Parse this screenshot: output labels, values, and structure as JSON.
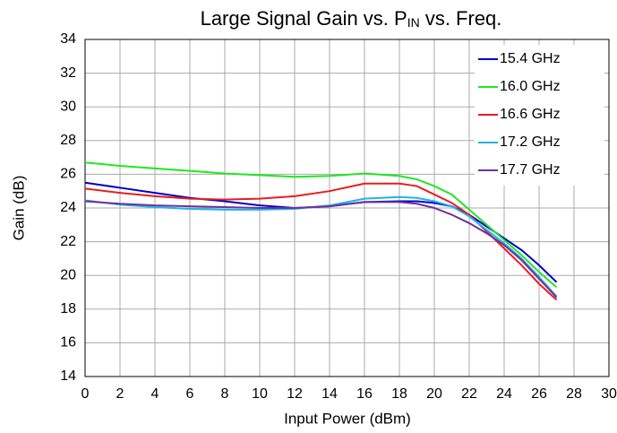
{
  "chart_data": {
    "type": "line",
    "title": [
      "Large Signal Gain vs. P",
      "IN",
      " vs. Freq."
    ],
    "x_label": "Input Power (dBm)",
    "y_label": "Gain (dB)",
    "x": [
      0,
      2,
      4,
      6,
      8,
      10,
      12,
      14,
      16,
      18,
      19,
      20,
      21,
      22,
      23,
      24,
      25,
      26,
      27
    ],
    "series": [
      {
        "name": "15.4 GHz",
        "color": "#0000c8",
        "values": [
          25.5,
          25.2,
          24.9,
          24.6,
          24.4,
          24.15,
          24.0,
          24.1,
          24.35,
          24.4,
          24.4,
          24.3,
          24.1,
          23.6,
          22.9,
          22.2,
          21.5,
          20.6,
          19.6
        ]
      },
      {
        "name": "16.0 GHz",
        "color": "#22e622",
        "values": [
          26.7,
          26.5,
          26.35,
          26.2,
          26.05,
          25.95,
          25.85,
          25.9,
          26.05,
          25.9,
          25.7,
          25.3,
          24.8,
          23.9,
          23.0,
          22.1,
          21.2,
          20.2,
          19.3
        ]
      },
      {
        "name": "16.6 GHz",
        "color": "#e61e1e",
        "values": [
          25.15,
          24.9,
          24.7,
          24.55,
          24.5,
          24.55,
          24.7,
          25.0,
          25.45,
          25.45,
          25.3,
          24.8,
          24.3,
          23.6,
          22.6,
          21.6,
          20.6,
          19.5,
          18.55
        ]
      },
      {
        "name": "17.2 GHz",
        "color": "#1eb4e6",
        "values": [
          24.45,
          24.2,
          24.05,
          23.95,
          23.9,
          23.9,
          23.95,
          24.15,
          24.55,
          24.65,
          24.6,
          24.4,
          24.1,
          23.5,
          22.7,
          21.9,
          21.0,
          19.9,
          18.75
        ]
      },
      {
        "name": "17.7 GHz",
        "color": "#6e32a0",
        "values": [
          24.4,
          24.25,
          24.15,
          24.1,
          24.05,
          24.0,
          24.0,
          24.1,
          24.35,
          24.35,
          24.25,
          24.0,
          23.6,
          23.1,
          22.5,
          21.8,
          20.9,
          19.8,
          18.7
        ]
      }
    ],
    "xlim": [
      0,
      30
    ],
    "xticks": [
      0,
      2,
      4,
      6,
      8,
      10,
      12,
      14,
      16,
      18,
      20,
      22,
      24,
      26,
      28,
      30
    ],
    "ylim": [
      14,
      34
    ],
    "yticks": [
      14,
      16,
      18,
      20,
      22,
      24,
      26,
      28,
      30,
      32,
      34
    ],
    "grid": true,
    "legend": "top-right"
  }
}
